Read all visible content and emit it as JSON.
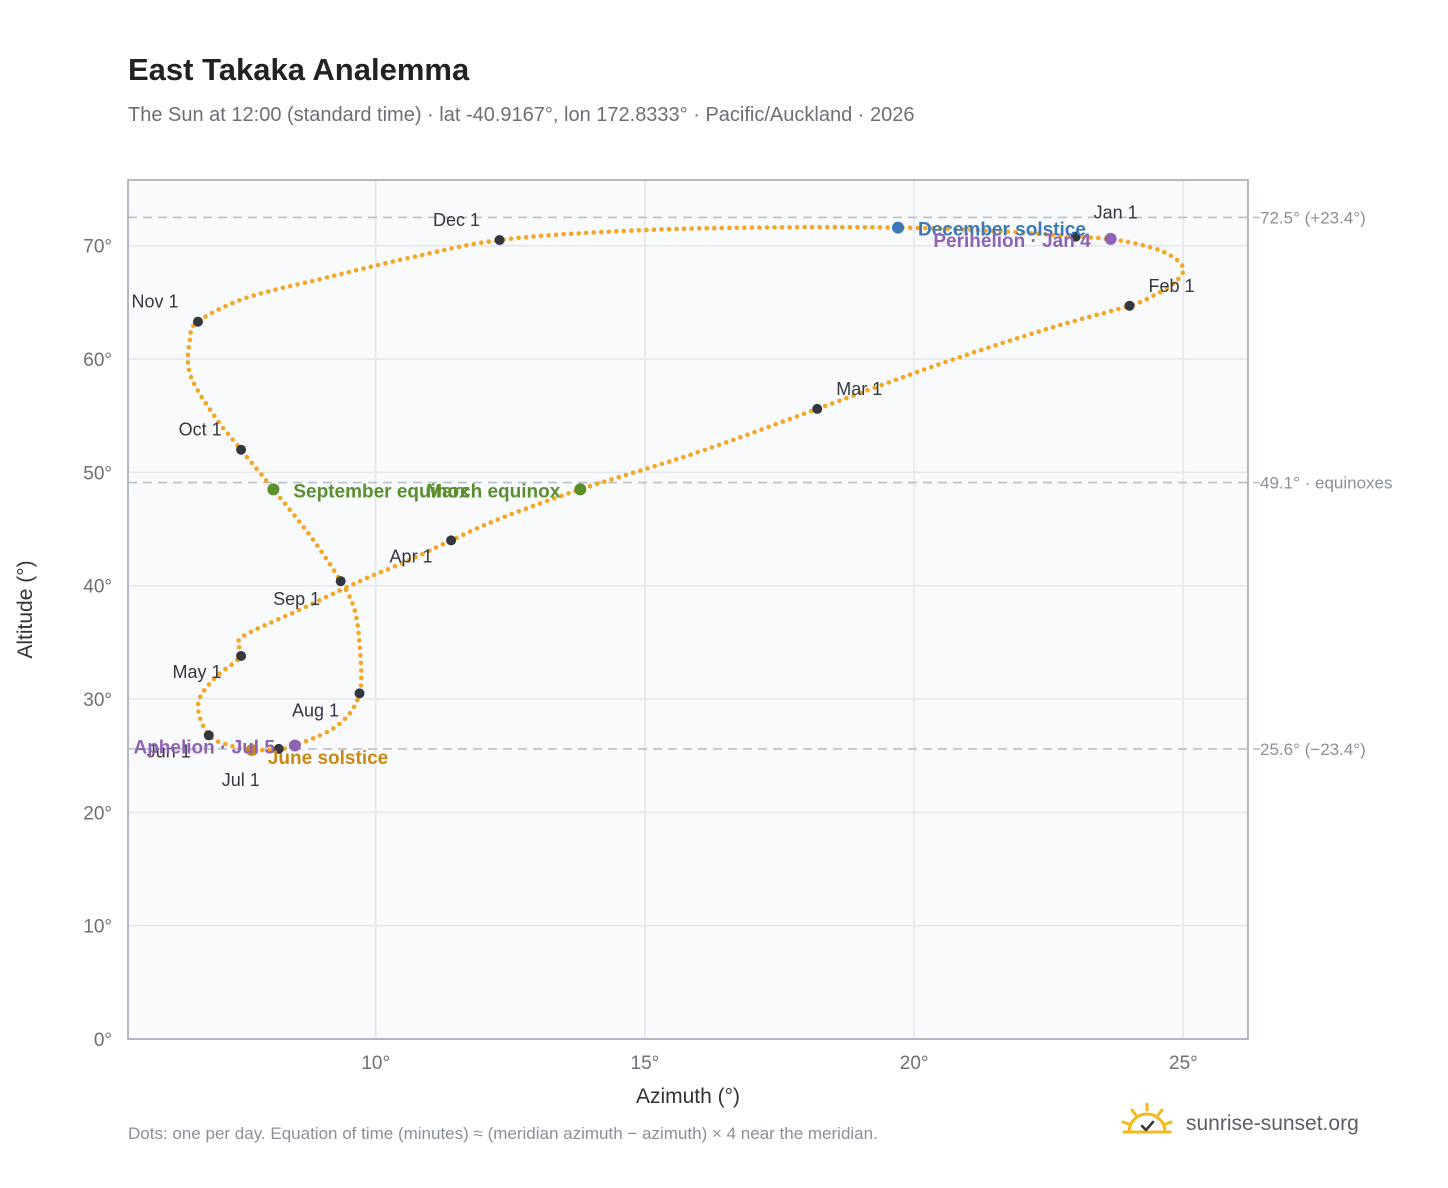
{
  "header": {
    "title": "East Takaka Analemma",
    "subtitle": "The Sun at 12:00 (standard time) · lat -40.9167°, lon 172.8333° · Pacific/Auckland · 2026"
  },
  "footer": {
    "note": "Dots: one per day. Equation of time (minutes) ≈ (meridian azimuth − azimuth) × 4 near the meridian.",
    "brand": "sunrise-sunset.org",
    "brand_icon": "sun-check-icon"
  },
  "colors": {
    "curve": "#f5a623",
    "month_marker": "#333840",
    "solstice_dec": "#3a78b8",
    "solstice_jun": "#c98a14",
    "equinox": "#5a8f2e",
    "aphelion_perihelion": "#8e63b3",
    "grid": "#e3e7ec",
    "plot_bg": "#f8fafc",
    "frame": "#9aa3b0",
    "ref_line": "#b8bfc9"
  },
  "chart_data": {
    "type": "scatter",
    "xlabel": "Azimuth (°)",
    "ylabel": "Altitude (°)",
    "xlim": [
      5.4,
      26.2
    ],
    "ylim": [
      0,
      75.8
    ],
    "x_ticks": [
      10,
      15,
      20,
      25
    ],
    "x_tick_labels": [
      "10°",
      "15°",
      "20°",
      "25°"
    ],
    "y_ticks": [
      0,
      10,
      20,
      30,
      40,
      50,
      60,
      70
    ],
    "y_tick_labels": [
      "0°",
      "10°",
      "20°",
      "30°",
      "40°",
      "50°",
      "60°",
      "70°"
    ],
    "grid": true,
    "reference_lines": [
      {
        "y": 72.5,
        "label": "72.5° (+23.4°)"
      },
      {
        "y": 49.1,
        "label": "49.1° · equinoxes"
      },
      {
        "y": 25.6,
        "label": "25.6° (−23.4°)"
      }
    ],
    "series": [
      {
        "points_note": "one dot per day",
        "points": [
          {
            "x": 23.0,
            "y": 70.8
          },
          {
            "x": 23.6,
            "y": 70.6
          },
          {
            "x": 24.2,
            "y": 70.1
          },
          {
            "x": 24.7,
            "y": 69.3
          },
          {
            "x": 25.0,
            "y": 68.0
          },
          {
            "x": 24.8,
            "y": 66.6
          },
          {
            "x": 24.4,
            "y": 65.5
          },
          {
            "x": 24.0,
            "y": 64.7
          },
          {
            "x": 22.5,
            "y": 62.7
          },
          {
            "x": 20.5,
            "y": 59.6
          },
          {
            "x": 18.2,
            "y": 55.6
          },
          {
            "x": 16.0,
            "y": 51.8
          },
          {
            "x": 13.8,
            "y": 48.5
          },
          {
            "x": 12.3,
            "y": 45.9
          },
          {
            "x": 11.4,
            "y": 44.0
          },
          {
            "x": 10.6,
            "y": 42.2
          },
          {
            "x": 9.8,
            "y": 40.6
          },
          {
            "x": 8.6,
            "y": 37.9
          },
          {
            "x": 7.5,
            "y": 35.4
          },
          {
            "x": 7.5,
            "y": 33.8
          },
          {
            "x": 7.0,
            "y": 31.8
          },
          {
            "x": 6.7,
            "y": 29.5
          },
          {
            "x": 6.9,
            "y": 26.8
          },
          {
            "x": 7.3,
            "y": 25.9
          },
          {
            "x": 7.7,
            "y": 25.5
          },
          {
            "x": 8.2,
            "y": 25.6
          },
          {
            "x": 8.5,
            "y": 25.9
          },
          {
            "x": 9.3,
            "y": 27.7
          },
          {
            "x": 9.7,
            "y": 30.5
          },
          {
            "x": 9.7,
            "y": 34.8
          },
          {
            "x": 9.6,
            "y": 38.0
          },
          {
            "x": 9.35,
            "y": 40.4
          },
          {
            "x": 8.8,
            "y": 44.3
          },
          {
            "x": 8.1,
            "y": 48.5
          },
          {
            "x": 7.5,
            "y": 52.0
          },
          {
            "x": 7.0,
            "y": 55.0
          },
          {
            "x": 6.55,
            "y": 58.7
          },
          {
            "x": 6.55,
            "y": 61.7
          },
          {
            "x": 6.7,
            "y": 63.3
          },
          {
            "x": 7.6,
            "y": 65.4
          },
          {
            "x": 9.1,
            "y": 67.2
          },
          {
            "x": 10.6,
            "y": 68.9
          },
          {
            "x": 12.3,
            "y": 70.5
          },
          {
            "x": 14.6,
            "y": 71.3
          },
          {
            "x": 17.0,
            "y": 71.6
          },
          {
            "x": 19.7,
            "y": 71.6
          },
          {
            "x": 21.5,
            "y": 71.3
          },
          {
            "x": 23.0,
            "y": 70.8
          }
        ]
      }
    ],
    "month_markers": [
      {
        "label": "Jan 1",
        "x": 23.0,
        "y": 70.8
      },
      {
        "label": "Feb 1",
        "x": 24.0,
        "y": 64.7
      },
      {
        "label": "Mar 1",
        "x": 18.2,
        "y": 55.6
      },
      {
        "label": "Apr 1",
        "x": 11.4,
        "y": 44.0
      },
      {
        "label": "May 1",
        "x": 7.5,
        "y": 33.8
      },
      {
        "label": "Jun 1",
        "x": 6.9,
        "y": 26.8
      },
      {
        "label": "Jul 1",
        "x": 8.2,
        "y": 25.6
      },
      {
        "label": "Aug 1",
        "x": 9.7,
        "y": 30.5
      },
      {
        "label": "Sep 1",
        "x": 9.35,
        "y": 40.4
      },
      {
        "label": "Oct 1",
        "x": 7.5,
        "y": 52.0
      },
      {
        "label": "Nov 1",
        "x": 6.7,
        "y": 63.3
      },
      {
        "label": "Dec 1",
        "x": 12.3,
        "y": 70.5
      }
    ],
    "events": [
      {
        "label": "December solstice",
        "x": 19.7,
        "y": 71.6,
        "kind": "solstice_dec"
      },
      {
        "label": "Perihelion · Jan 4",
        "x": 23.65,
        "y": 70.6,
        "kind": "aphelion_perihelion"
      },
      {
        "label": "March equinox",
        "x": 13.8,
        "y": 48.5,
        "kind": "equinox"
      },
      {
        "label": "September equinox",
        "x": 8.1,
        "y": 48.5,
        "kind": "equinox"
      },
      {
        "label": "June solstice",
        "x": 7.7,
        "y": 25.5,
        "kind": "solstice_jun"
      },
      {
        "label": "Aphelion · Jul 5",
        "x": 8.5,
        "y": 25.9,
        "kind": "aphelion_perihelion"
      }
    ]
  }
}
